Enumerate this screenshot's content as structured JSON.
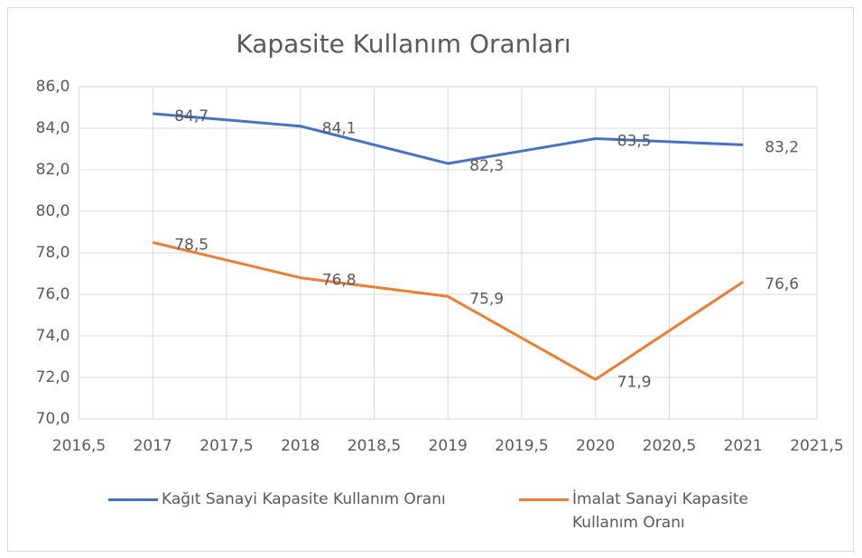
{
  "chart_data": {
    "type": "line",
    "title": "Kapasite Kullanım Oranları",
    "x": [
      2017,
      2018,
      2019,
      2020,
      2021
    ],
    "series": [
      {
        "name": "Kağıt Sanayi Kapasite Kullanım Oranı",
        "color": "#4472c4",
        "values": [
          84.7,
          84.1,
          82.3,
          83.5,
          83.2
        ],
        "value_labels": [
          "84,7",
          "84,1",
          "82,3",
          "83,5",
          "83,2"
        ]
      },
      {
        "name": "İmalat Sanayi Kapasite Kullanım Oranı",
        "color": "#ed7d31",
        "values": [
          78.5,
          76.8,
          75.9,
          71.9,
          76.6
        ],
        "value_labels": [
          "78,5",
          "76,8",
          "75,9",
          "71,9",
          "76,6"
        ]
      }
    ],
    "xlim": [
      2016.5,
      2021.5
    ],
    "xticks": [
      {
        "value": 2016.5,
        "label": "2016,5"
      },
      2017,
      {
        "value": 2017.5,
        "label": "2017,5"
      },
      2018,
      {
        "value": 2018.5,
        "label": "2018,5"
      },
      2019,
      {
        "value": 2019.5,
        "label": "2019,5"
      },
      2020,
      {
        "value": 2020.5,
        "label": "2020,5"
      },
      2021,
      {
        "value": 2021.5,
        "label": "2021,5"
      }
    ],
    "ylim": [
      70,
      86
    ],
    "yticks": [
      {
        "value": 70,
        "label": "70,0"
      },
      {
        "value": 72,
        "label": "72,0"
      },
      {
        "value": 74,
        "label": "74,0"
      },
      {
        "value": 76,
        "label": "76,0"
      },
      {
        "value": 78,
        "label": "78,0"
      },
      {
        "value": 80,
        "label": "80,0"
      },
      {
        "value": 82,
        "label": "82,0"
      },
      {
        "value": 84,
        "label": "84,0"
      },
      {
        "value": 86,
        "label": "86,0"
      }
    ],
    "grid": true,
    "legend": "bottom"
  }
}
